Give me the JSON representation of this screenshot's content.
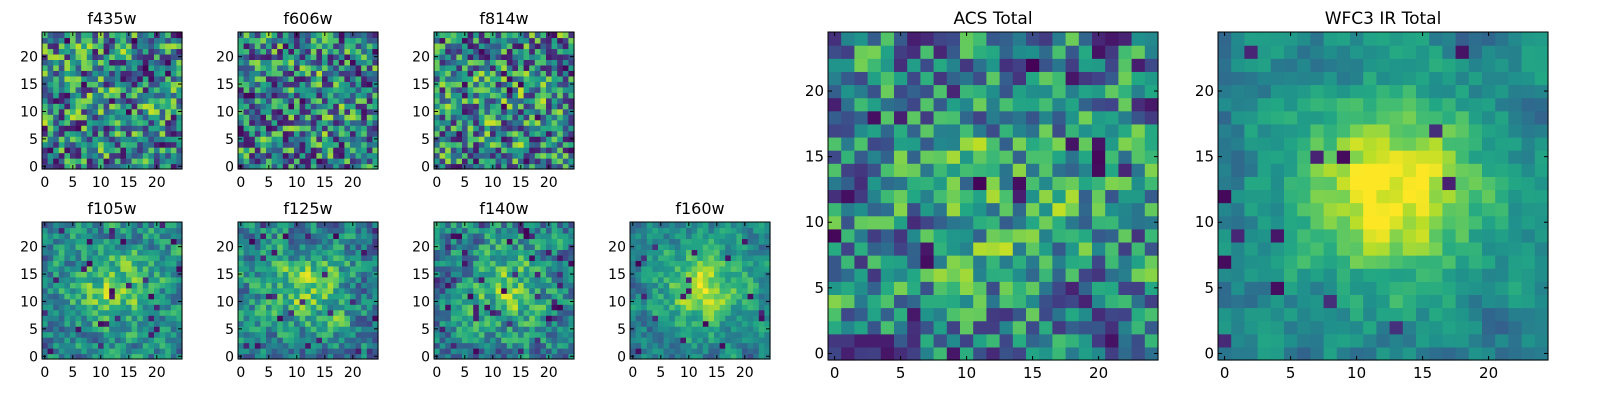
{
  "figure": {
    "description_free": true
  },
  "chart_data": [
    {
      "type": "heatmap",
      "title": "f435w",
      "grid_size": 25,
      "xlim": [
        0,
        25
      ],
      "ylim": [
        0,
        25
      ],
      "xticks": [
        "0",
        "5",
        "10",
        "15",
        "20"
      ],
      "yticks": [
        "0",
        "5",
        "10",
        "15",
        "20"
      ],
      "colormap": "viridis",
      "seed": 11,
      "blob_strength": 0.05,
      "noise": 0.85,
      "smooth": 0.2,
      "dark_frac": 0.05
    },
    {
      "type": "heatmap",
      "title": "f606w",
      "grid_size": 25,
      "xlim": [
        0,
        25
      ],
      "ylim": [
        0,
        25
      ],
      "xticks": [
        "0",
        "5",
        "10",
        "15",
        "20"
      ],
      "yticks": [
        "0",
        "5",
        "10",
        "15",
        "20"
      ],
      "colormap": "viridis",
      "seed": 23,
      "blob_strength": 0.05,
      "noise": 0.85,
      "smooth": 0.2,
      "dark_frac": 0.05
    },
    {
      "type": "heatmap",
      "title": "f814w",
      "grid_size": 25,
      "xlim": [
        0,
        25
      ],
      "ylim": [
        0,
        25
      ],
      "xticks": [
        "0",
        "5",
        "10",
        "15",
        "20"
      ],
      "yticks": [
        "0",
        "5",
        "10",
        "15",
        "20"
      ],
      "colormap": "viridis",
      "seed": 37,
      "blob_strength": 0.08,
      "noise": 0.85,
      "smooth": 0.2,
      "dark_frac": 0.06
    },
    {
      "type": "heatmap",
      "title": "f105w",
      "grid_size": 25,
      "xlim": [
        0,
        25
      ],
      "ylim": [
        0,
        25
      ],
      "xticks": [
        "0",
        "5",
        "10",
        "15",
        "20"
      ],
      "yticks": [
        "0",
        "5",
        "10",
        "15",
        "20"
      ],
      "colormap": "viridis",
      "seed": 41,
      "blob_strength": 0.35,
      "noise": 0.6,
      "smooth": 0.45,
      "dark_frac": 0.05
    },
    {
      "type": "heatmap",
      "title": "f125w",
      "grid_size": 25,
      "xlim": [
        0,
        25
      ],
      "ylim": [
        0,
        25
      ],
      "xticks": [
        "0",
        "5",
        "10",
        "15",
        "20"
      ],
      "yticks": [
        "0",
        "5",
        "10",
        "15",
        "20"
      ],
      "colormap": "viridis",
      "seed": 53,
      "blob_strength": 0.3,
      "noise": 0.65,
      "smooth": 0.45,
      "dark_frac": 0.05
    },
    {
      "type": "heatmap",
      "title": "f140w",
      "grid_size": 25,
      "xlim": [
        0,
        25
      ],
      "ylim": [
        0,
        25
      ],
      "xticks": [
        "0",
        "5",
        "10",
        "15",
        "20"
      ],
      "yticks": [
        "0",
        "5",
        "10",
        "15",
        "20"
      ],
      "colormap": "viridis",
      "seed": 67,
      "blob_strength": 0.3,
      "noise": 0.65,
      "smooth": 0.45,
      "dark_frac": 0.05
    },
    {
      "type": "heatmap",
      "title": "f160w",
      "grid_size": 25,
      "xlim": [
        0,
        25
      ],
      "ylim": [
        0,
        25
      ],
      "xticks": [
        "0",
        "5",
        "10",
        "15",
        "20"
      ],
      "yticks": [
        "0",
        "5",
        "10",
        "15",
        "20"
      ],
      "colormap": "viridis",
      "seed": 79,
      "blob_strength": 0.45,
      "noise": 0.5,
      "smooth": 0.55,
      "dark_frac": 0.04
    },
    {
      "type": "heatmap",
      "title": "ACS Total",
      "grid_size": 25,
      "xlim": [
        0,
        25
      ],
      "ylim": [
        0,
        25
      ],
      "xticks": [
        "0",
        "5",
        "10",
        "15",
        "20"
      ],
      "yticks": [
        "0",
        "5",
        "10",
        "15",
        "20"
      ],
      "colormap": "viridis",
      "seed": 97,
      "blob_strength": 0.15,
      "noise": 0.75,
      "smooth": 0.3,
      "dark_frac": 0.06
    },
    {
      "type": "heatmap",
      "title": "WFC3 IR Total",
      "grid_size": 25,
      "xlim": [
        0,
        25
      ],
      "ylim": [
        0,
        25
      ],
      "xticks": [
        "0",
        "5",
        "10",
        "15",
        "20"
      ],
      "yticks": [
        "0",
        "5",
        "10",
        "15",
        "20"
      ],
      "colormap": "viridis",
      "seed": 113,
      "blob_strength": 0.55,
      "noise": 0.4,
      "smooth": 0.6,
      "dark_frac": 0.03
    }
  ]
}
